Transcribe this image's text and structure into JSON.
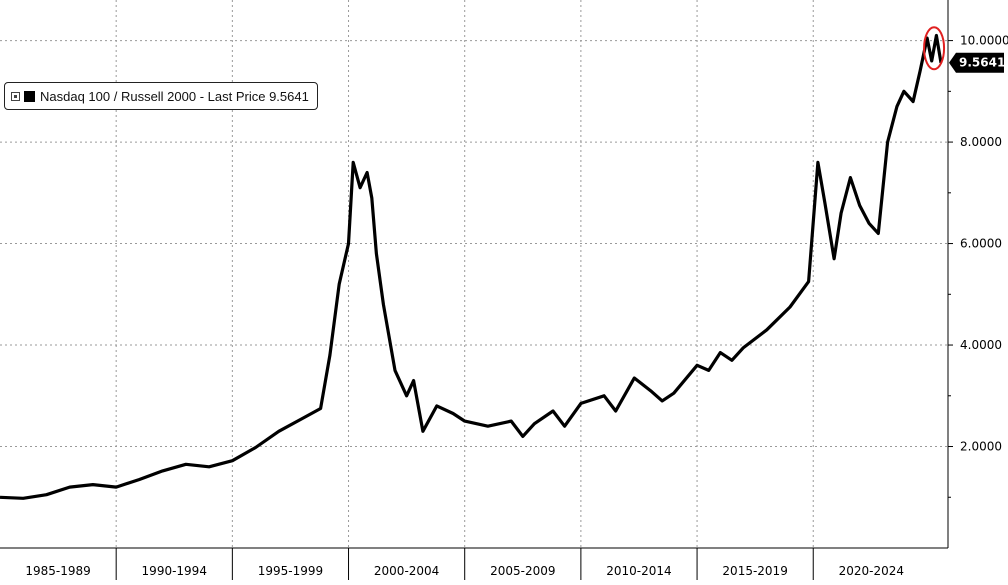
{
  "colors": {
    "line": "#000000",
    "grid": "#9a9a9a",
    "highlight_circle": "#e02020",
    "badge_bg": "#000000",
    "badge_text": "#ffffff"
  },
  "legend": {
    "toggle_icon": "expand-square-icon",
    "text": "Nasdaq 100 / Russell 2000 - Last Price 9.5641"
  },
  "chart_data": {
    "type": "line",
    "title": "",
    "xlabel": "",
    "ylabel": "",
    "x_tick_labels": [
      "1985-1989",
      "1990-1994",
      "1995-1999",
      "2000-2004",
      "2005-2009",
      "2010-2014",
      "2015-2019",
      "2020-2024"
    ],
    "xlim": [
      1985.0,
      2025.8
    ],
    "ylim": [
      0.0,
      10.8
    ],
    "y_ticks": [
      2,
      4,
      6,
      8,
      10
    ],
    "y_tick_labels": [
      "2.0000",
      "4.0000",
      "6.0000",
      "8.0000",
      "10.0000"
    ],
    "grid": true,
    "y_axis_position": "right",
    "legend_position": "top-left",
    "last_price_label": "9.5641",
    "last_value": 9.5641,
    "highlight": "circle around latest peak",
    "series": [
      {
        "name": "Nasdaq 100 / Russell 2000",
        "x": [
          1985.0,
          1986.0,
          1987.0,
          1988.0,
          1989.0,
          1990.0,
          1991.0,
          1992.0,
          1993.0,
          1994.0,
          1995.0,
          1996.0,
          1997.0,
          1998.0,
          1998.8,
          1999.2,
          1999.6,
          2000.0,
          2000.2,
          2000.5,
          2000.8,
          2001.0,
          2001.2,
          2001.5,
          2002.0,
          2002.5,
          2002.8,
          2003.2,
          2003.8,
          2004.5,
          2005.0,
          2006.0,
          2007.0,
          2007.5,
          2008.0,
          2008.8,
          2009.3,
          2010.0,
          2011.0,
          2011.5,
          2012.3,
          2013.0,
          2013.5,
          2014.0,
          2015.0,
          2015.5,
          2016.0,
          2016.5,
          2017.0,
          2018.0,
          2019.0,
          2019.8,
          2020.2,
          2020.5,
          2020.9,
          2021.2,
          2021.6,
          2022.0,
          2022.4,
          2022.8,
          2023.2,
          2023.6,
          2023.9,
          2024.3,
          2024.6,
          2024.9,
          2025.1,
          2025.3,
          2025.5
        ],
        "values": [
          1.0,
          0.98,
          1.05,
          1.2,
          1.25,
          1.2,
          1.35,
          1.52,
          1.65,
          1.6,
          1.72,
          1.98,
          2.3,
          2.55,
          2.75,
          3.8,
          5.2,
          6.0,
          7.6,
          7.1,
          7.4,
          6.9,
          5.8,
          4.8,
          3.5,
          3.0,
          3.3,
          2.3,
          2.8,
          2.65,
          2.5,
          2.4,
          2.5,
          2.2,
          2.45,
          2.7,
          2.4,
          2.85,
          3.0,
          2.7,
          3.35,
          3.1,
          2.9,
          3.05,
          3.6,
          3.5,
          3.85,
          3.7,
          3.95,
          4.3,
          4.75,
          5.25,
          7.6,
          6.8,
          5.7,
          6.6,
          7.3,
          6.75,
          6.4,
          6.2,
          8.0,
          8.7,
          9.0,
          8.8,
          9.4,
          10.05,
          9.6,
          10.1,
          9.56
        ]
      }
    ]
  }
}
